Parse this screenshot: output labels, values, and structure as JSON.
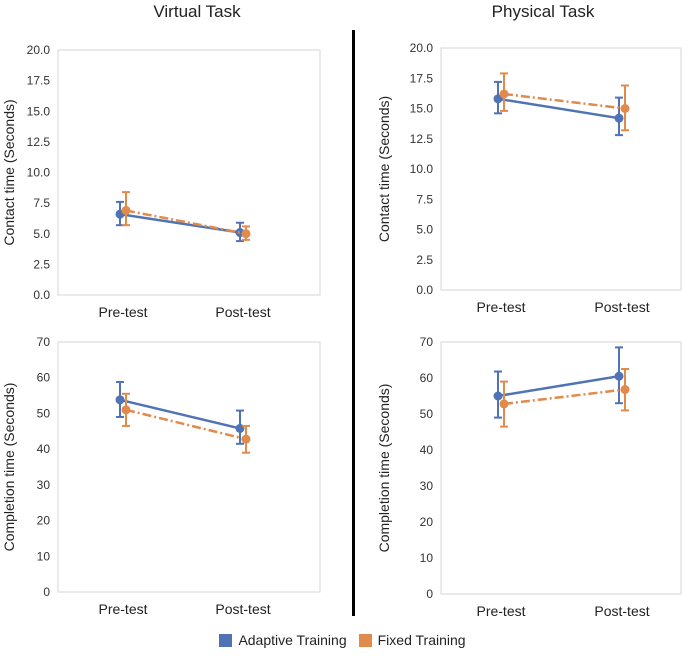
{
  "columns": {
    "left": "Virtual Task",
    "right": "Physical Task"
  },
  "colors": {
    "adaptive": "#4f73b4",
    "fixed": "#e08a4c"
  },
  "legend": [
    {
      "label": "Adaptive Training",
      "color": "#4f73b4"
    },
    {
      "label": "Fixed Training",
      "color": "#e08a4c"
    }
  ],
  "chart_data": [
    {
      "id": "virtual-contact",
      "type": "line",
      "categories": [
        "Pre-test",
        "Post-test"
      ],
      "ylabel": "Contact time (Seconds)",
      "ylim": [
        0,
        20
      ],
      "yticks": [
        "0.0",
        "2.5",
        "5.0",
        "7.5",
        "10.0",
        "12.5",
        "15.0",
        "17.5",
        "20.0"
      ],
      "series": [
        {
          "name": "Adaptive Training",
          "values": [
            6.6,
            5.1
          ],
          "err_low": [
            5.7,
            4.4
          ],
          "err_high": [
            7.6,
            5.9
          ]
        },
        {
          "name": "Fixed Training",
          "values": [
            6.9,
            5.0
          ],
          "err_low": [
            5.7,
            4.5
          ],
          "err_high": [
            8.4,
            5.6
          ]
        }
      ]
    },
    {
      "id": "physical-contact",
      "type": "line",
      "categories": [
        "Pre-test",
        "Post-test"
      ],
      "ylabel": "Contact time (Seconds)",
      "ylim": [
        0,
        20
      ],
      "yticks": [
        "0.0",
        "2.5",
        "5.0",
        "7.5",
        "10.0",
        "12.5",
        "15.0",
        "17.5",
        "20.0"
      ],
      "series": [
        {
          "name": "Adaptive Training",
          "values": [
            15.8,
            14.2
          ],
          "err_low": [
            14.6,
            12.8
          ],
          "err_high": [
            17.2,
            15.9
          ]
        },
        {
          "name": "Fixed Training",
          "values": [
            16.2,
            15.0
          ],
          "err_low": [
            14.8,
            13.2
          ],
          "err_high": [
            17.9,
            16.9
          ]
        }
      ]
    },
    {
      "id": "virtual-completion",
      "type": "line",
      "categories": [
        "Pre-test",
        "Post-test"
      ],
      "ylabel": "Completion time (Seconds)",
      "ylim": [
        0,
        70
      ],
      "yticks": [
        "0",
        "10",
        "20",
        "30",
        "40",
        "50",
        "60",
        "70"
      ],
      "series": [
        {
          "name": "Adaptive Training",
          "values": [
            53.8,
            45.8
          ],
          "err_low": [
            49.0,
            41.5
          ],
          "err_high": [
            58.8,
            50.8
          ]
        },
        {
          "name": "Fixed Training",
          "values": [
            51.0,
            42.8
          ],
          "err_low": [
            46.5,
            39.0
          ],
          "err_high": [
            55.5,
            46.5
          ]
        }
      ]
    },
    {
      "id": "physical-completion",
      "type": "line",
      "categories": [
        "Pre-test",
        "Post-test"
      ],
      "ylabel": "Completion time (Seconds)",
      "ylim": [
        0,
        70
      ],
      "yticks": [
        "0",
        "10",
        "20",
        "30",
        "40",
        "50",
        "60",
        "70"
      ],
      "series": [
        {
          "name": "Adaptive Training",
          "values": [
            55.0,
            60.5
          ],
          "err_low": [
            49.0,
            53.0
          ],
          "err_high": [
            61.8,
            68.5
          ]
        },
        {
          "name": "Fixed Training",
          "values": [
            52.8,
            56.8
          ],
          "err_low": [
            46.5,
            51.0
          ],
          "err_high": [
            59.0,
            62.5
          ]
        }
      ]
    }
  ]
}
